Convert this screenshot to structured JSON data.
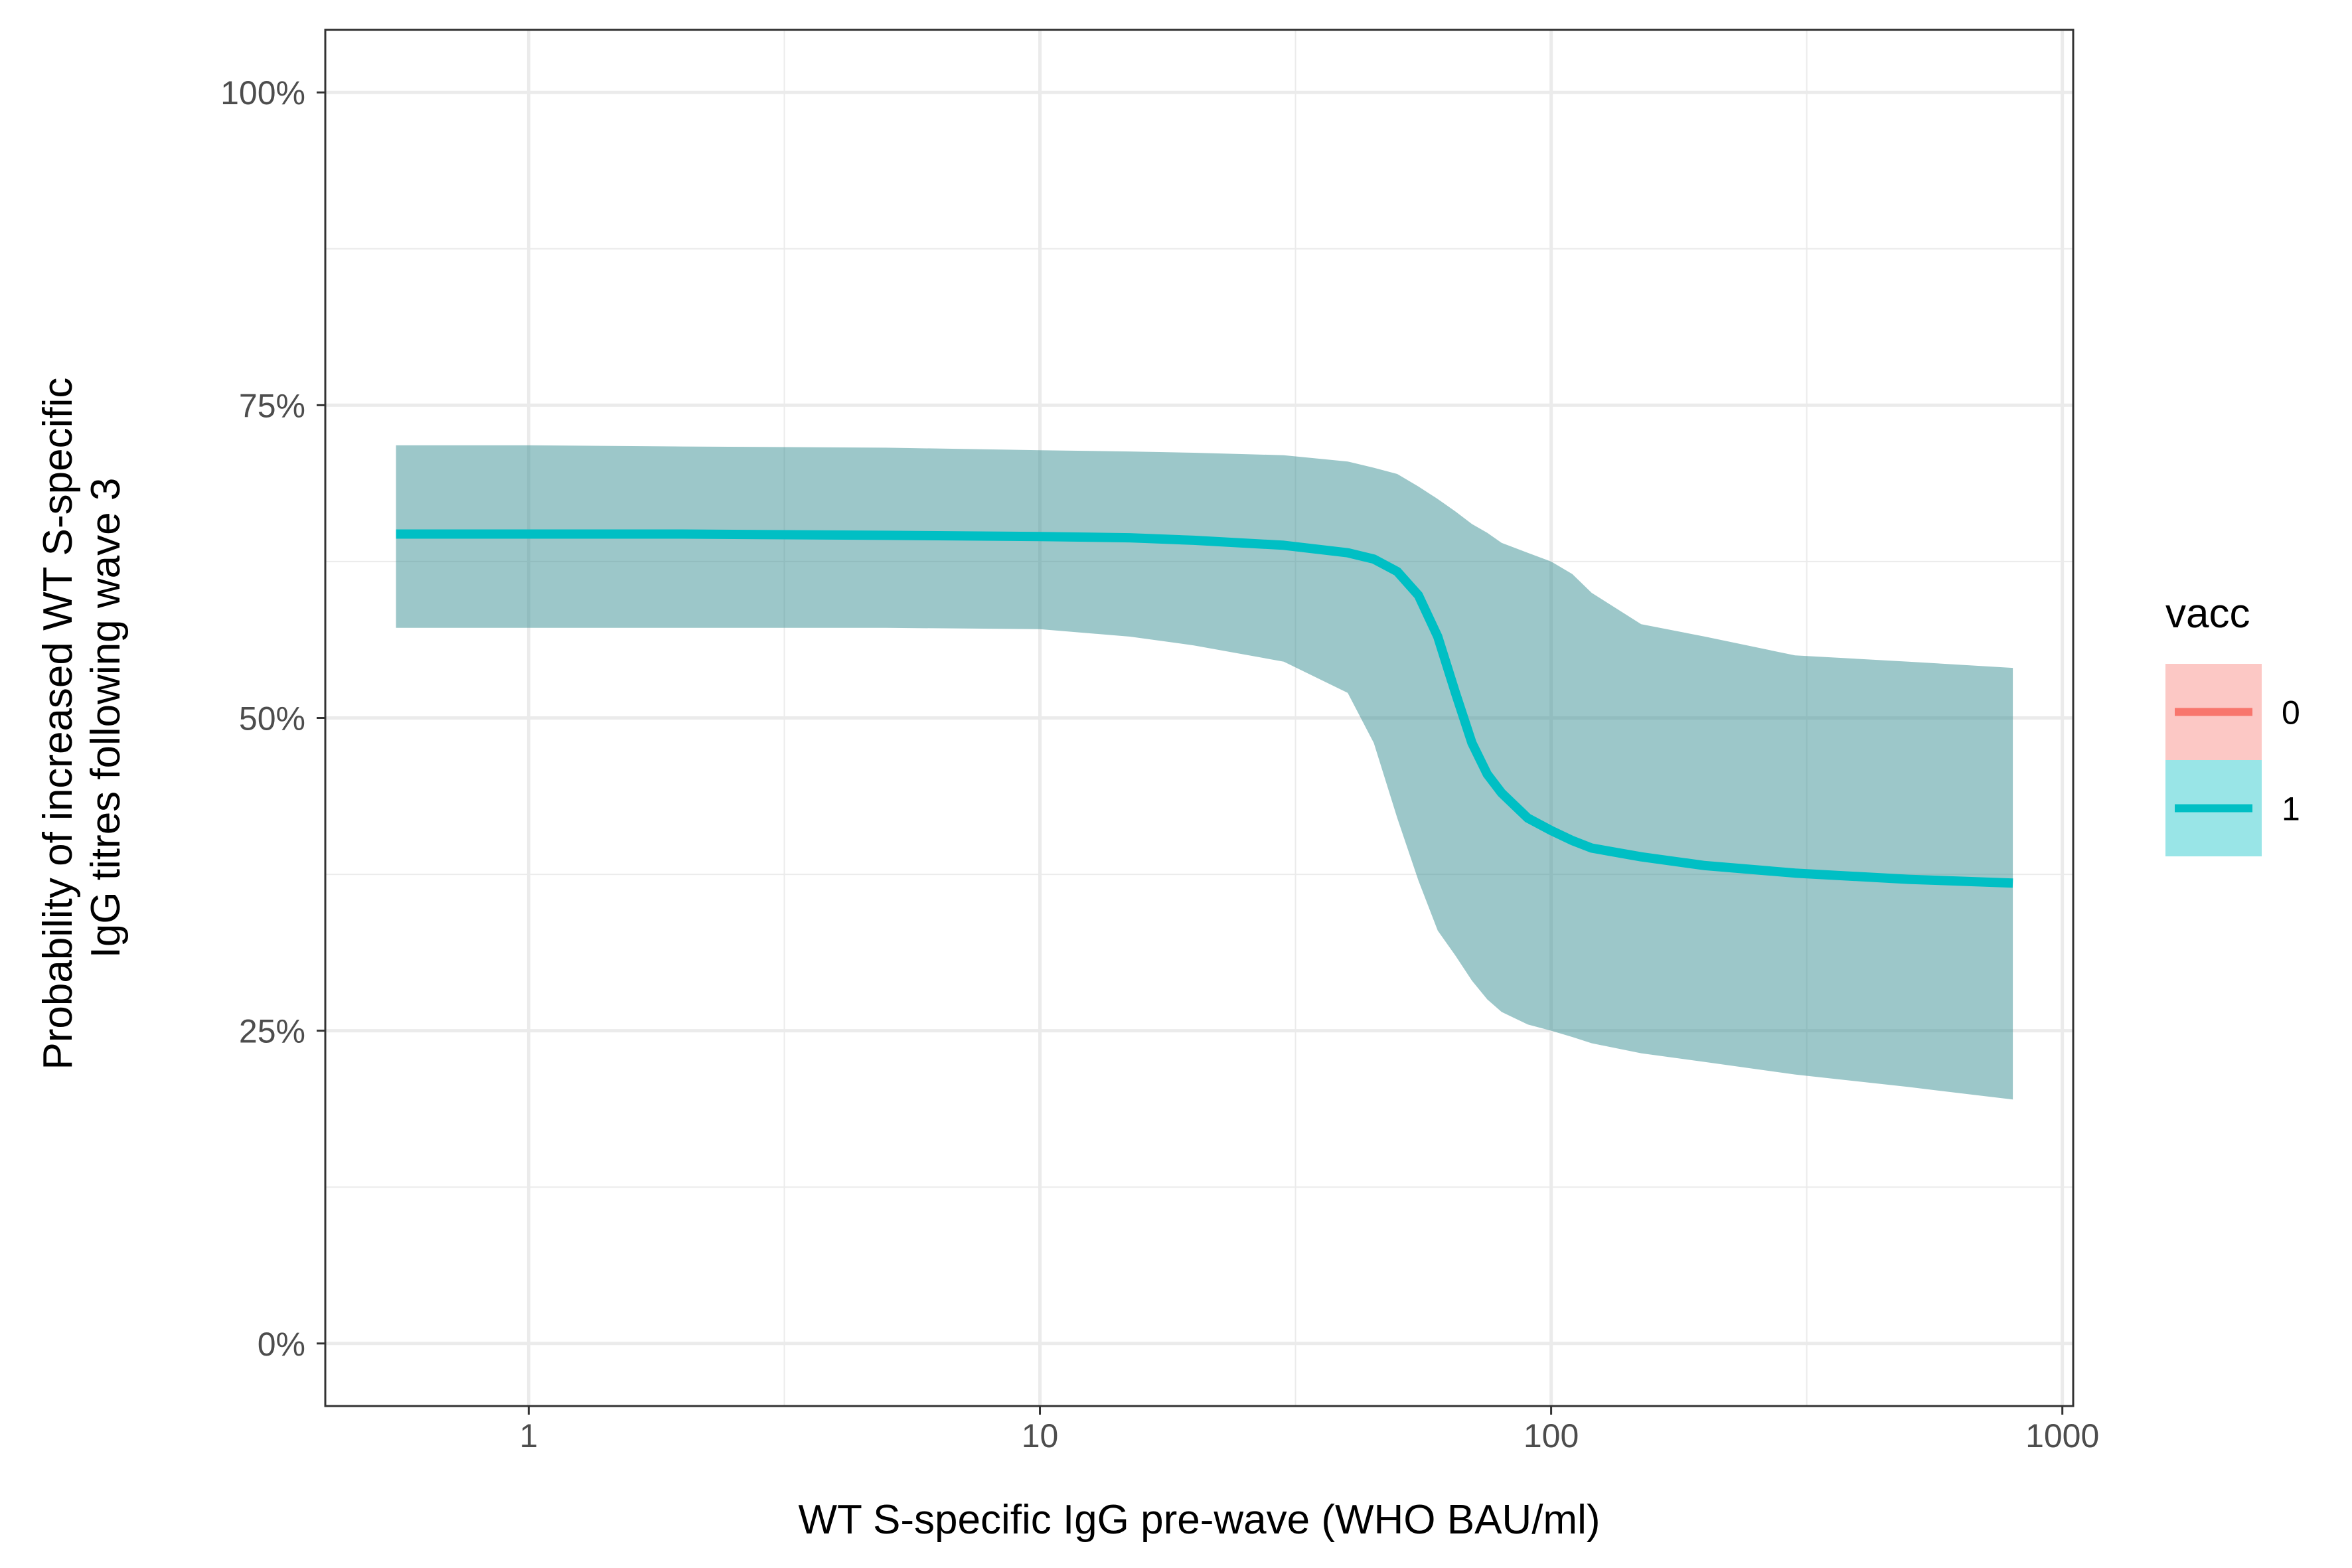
{
  "chart_data": {
    "type": "line",
    "xlabel": "WT S-specific IgG pre-wave (WHO BAU/ml)",
    "ylabel_lines": [
      "Probability of increased WT S-specific",
      "IgG titres following wave 3"
    ],
    "x_scale": "log10",
    "xlim": [
      0.4,
      1050
    ],
    "ylim": [
      -0.05,
      1.05
    ],
    "x_ticks": [
      1,
      10,
      100,
      1000
    ],
    "x_tick_labels": [
      "1",
      "10",
      "100",
      "1000"
    ],
    "y_ticks": [
      0,
      0.25,
      0.5,
      0.75,
      1
    ],
    "y_tick_labels": [
      "0%",
      "25%",
      "50%",
      "75%",
      "100%"
    ],
    "grid": true,
    "legend": {
      "title": "vacc",
      "position": "right",
      "entries": [
        {
          "label": "0",
          "line_color": "#F8766D",
          "fill_color": "#F8766D"
        },
        {
          "label": "1",
          "line_color": "#00BFC4",
          "fill_color": "#00BFC4"
        }
      ]
    },
    "series": [
      {
        "name": "1",
        "color": "#00BFC4",
        "band_color": "#3A8F93",
        "x": [
          0.55,
          1,
          2,
          5,
          10,
          15,
          20,
          30,
          40,
          45,
          50,
          55,
          60,
          65,
          70,
          75,
          80,
          90,
          100,
          110,
          120,
          150,
          200,
          300,
          500,
          800
        ],
        "y": [
          0.647,
          0.647,
          0.647,
          0.646,
          0.645,
          0.644,
          0.642,
          0.638,
          0.632,
          0.627,
          0.617,
          0.598,
          0.565,
          0.52,
          0.48,
          0.455,
          0.44,
          0.42,
          0.41,
          0.402,
          0.396,
          0.389,
          0.382,
          0.376,
          0.371,
          0.368
        ],
        "lower": [
          0.572,
          0.572,
          0.572,
          0.572,
          0.571,
          0.565,
          0.558,
          0.545,
          0.52,
          0.48,
          0.42,
          0.37,
          0.33,
          0.31,
          0.29,
          0.275,
          0.265,
          0.255,
          0.25,
          0.245,
          0.24,
          0.232,
          0.225,
          0.215,
          0.205,
          0.195
        ],
        "upper": [
          0.718,
          0.718,
          0.717,
          0.716,
          0.714,
          0.713,
          0.712,
          0.71,
          0.705,
          0.7,
          0.695,
          0.685,
          0.675,
          0.665,
          0.655,
          0.648,
          0.64,
          0.632,
          0.625,
          0.615,
          0.6,
          0.575,
          0.565,
          0.55,
          0.545,
          0.54
        ]
      }
    ]
  }
}
